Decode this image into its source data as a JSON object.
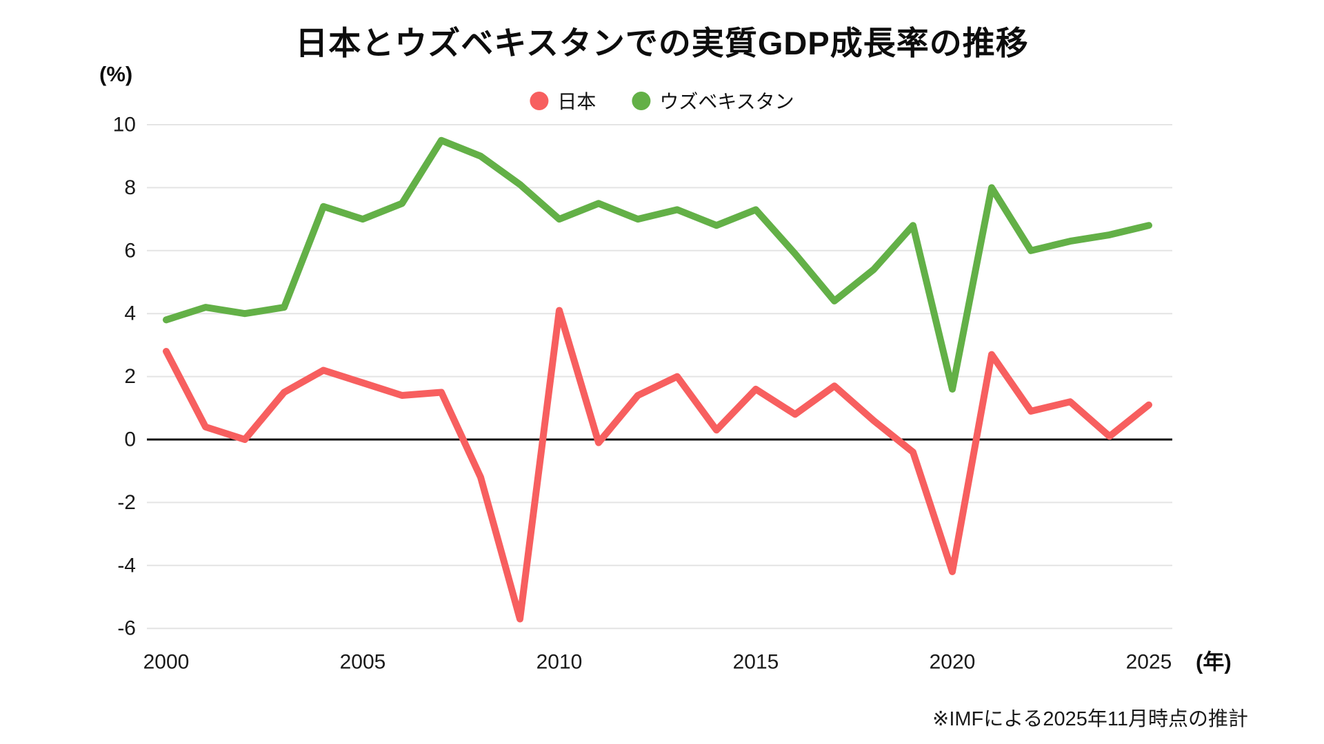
{
  "title": "日本とウズベキスタンでの実質GDP成長率の推移",
  "y_axis_unit": "(%)",
  "x_axis_unit": "(年)",
  "footnote": "※IMFによる2025年11月時点の推計",
  "legend": [
    {
      "label": "日本",
      "color": "#f75f5f"
    },
    {
      "label": "ウズベキスタン",
      "color": "#63b047"
    }
  ],
  "chart_data": {
    "type": "line",
    "title": "日本とウズベキスタンでの実質GDP成長率の推移",
    "xlabel": "(年)",
    "ylabel": "(%)",
    "x": [
      2000,
      2001,
      2002,
      2003,
      2004,
      2005,
      2006,
      2007,
      2008,
      2009,
      2010,
      2011,
      2012,
      2013,
      2014,
      2015,
      2016,
      2017,
      2018,
      2019,
      2020,
      2021,
      2022,
      2023,
      2024,
      2025
    ],
    "series": [
      {
        "id": "japan",
        "name": "日本",
        "color": "#f75f5f",
        "values": [
          2.8,
          0.4,
          0.0,
          1.5,
          2.2,
          1.8,
          1.4,
          1.5,
          -1.2,
          -5.7,
          4.1,
          -0.1,
          1.4,
          2.0,
          0.3,
          1.6,
          0.8,
          1.7,
          0.6,
          -0.4,
          -4.2,
          2.7,
          0.9,
          1.2,
          0.1,
          1.1
        ]
      },
      {
        "id": "uzbekistan",
        "name": "ウズベキスタン",
        "color": "#63b047",
        "values": [
          3.8,
          4.2,
          4.0,
          4.2,
          7.4,
          7.0,
          7.5,
          9.5,
          9.0,
          8.1,
          7.0,
          7.5,
          7.0,
          7.3,
          6.8,
          7.3,
          5.9,
          4.4,
          5.4,
          6.8,
          1.6,
          8.0,
          6.0,
          6.3,
          6.5,
          6.8
        ]
      }
    ],
    "ylim": [
      -6,
      10
    ],
    "yticks": [
      10,
      8,
      6,
      4,
      2,
      0,
      -2,
      -4,
      -6
    ],
    "xticks": [
      2000,
      2005,
      2010,
      2015,
      2020,
      2025
    ],
    "grid": true,
    "zero_line": true,
    "legend_position": "top",
    "grid_color": "#e4e4e4",
    "zero_line_color": "#111111",
    "background": "#ffffff"
  }
}
